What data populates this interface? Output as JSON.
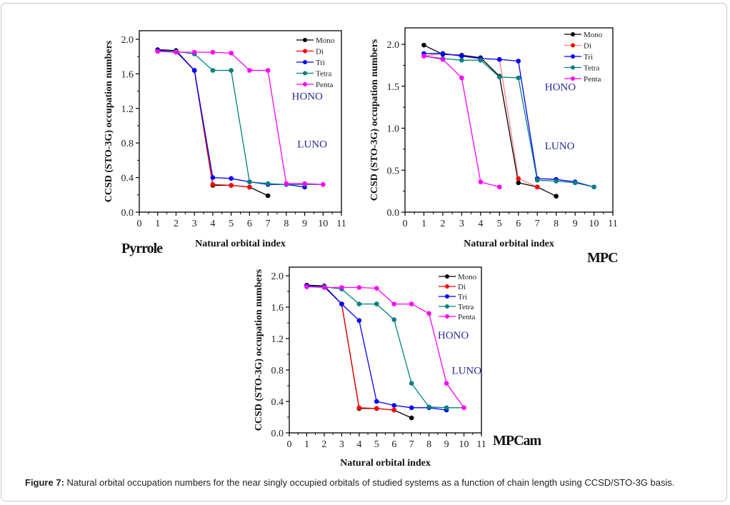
{
  "caption": {
    "label": "Figure 7:",
    "text": " Natural orbital occupation numbers for the near singly occupied orbitals of studied systems as a function of chain length using CCSD/STO-3G basis."
  },
  "chart_data": [
    {
      "type": "line",
      "system_label": "Pyrrole",
      "xlabel": "Natural orbital index",
      "ylabel": "CCSD (STO-3G) occupation numbers",
      "xlim": [
        0,
        11
      ],
      "ylim": [
        0,
        2.0
      ],
      "xticks": [
        "0",
        "1",
        "2",
        "3",
        "4",
        "5",
        "6",
        "7",
        "8",
        "9",
        "10",
        "11"
      ],
      "yticks": [
        "0.0",
        "0.4",
        "0.8",
        "1.2",
        "1.6",
        "2.0"
      ],
      "ytick_values": [
        0,
        0.4,
        0.8,
        1.2,
        1.6,
        2.0
      ],
      "legend": "top-right",
      "annotations": [
        {
          "text": "HONO",
          "x": 8.3,
          "y": 1.3
        },
        {
          "text": "LUNO",
          "x": 8.6,
          "y": 0.75
        }
      ],
      "series": [
        {
          "name": "Mono",
          "color": "#000000",
          "x": [
            1,
            2,
            3,
            4,
            5,
            6,
            7
          ],
          "y": [
            1.88,
            1.87,
            1.64,
            0.31,
            0.31,
            0.29,
            0.19
          ]
        },
        {
          "name": "Di",
          "color": "#ff0000",
          "x": [
            1,
            2,
            3,
            4,
            5,
            6
          ],
          "y": [
            1.87,
            1.86,
            1.64,
            0.32,
            0.31,
            0.29
          ]
        },
        {
          "name": "Tri",
          "color": "#0000ff",
          "x": [
            1,
            2,
            3,
            4,
            5,
            6,
            7,
            8,
            9
          ],
          "y": [
            1.87,
            1.86,
            1.64,
            0.4,
            0.39,
            0.35,
            0.32,
            0.32,
            0.29
          ]
        },
        {
          "name": "Tetra",
          "color": "#008080",
          "x": [
            1,
            2,
            3,
            4,
            5,
            6,
            7,
            8,
            9,
            10
          ],
          "y": [
            1.86,
            1.86,
            1.83,
            1.64,
            1.64,
            0.35,
            0.33,
            0.32,
            0.32,
            0.32
          ]
        },
        {
          "name": "Penta",
          "color": "#ff00ff",
          "x": [
            1,
            2,
            3,
            4,
            5,
            6,
            7,
            8,
            9,
            10
          ],
          "y": [
            1.86,
            1.85,
            1.85,
            1.85,
            1.84,
            1.64,
            1.64,
            0.33,
            0.33,
            0.32
          ]
        }
      ]
    },
    {
      "type": "line",
      "system_label": "MPC",
      "xlabel": "Natural orbital index",
      "ylabel": "CCSD (STO-3G) occupation numbers",
      "xlim": [
        0,
        11
      ],
      "ylim": [
        0,
        2.2
      ],
      "xticks": [
        "0",
        "1",
        "2",
        "3",
        "4",
        "5",
        "6",
        "7",
        "8",
        "9",
        "10",
        "11"
      ],
      "yticks": [
        "0.0",
        "0.5",
        "1.0",
        "1.5",
        "2.0"
      ],
      "ytick_values": [
        0,
        0.5,
        1.0,
        1.5,
        2.0
      ],
      "legend": "top-right",
      "annotations": [
        {
          "text": "HONO",
          "x": 7.4,
          "y": 1.45
        },
        {
          "text": "LUNO",
          "x": 7.4,
          "y": 0.75
        }
      ],
      "series": [
        {
          "name": "Mono",
          "color": "#000000",
          "x": [
            1,
            2,
            3,
            4,
            5,
            6,
            7,
            8
          ],
          "y": [
            1.99,
            1.88,
            1.87,
            1.84,
            1.62,
            0.35,
            0.3,
            0.19
          ]
        },
        {
          "name": "Di",
          "color": "#ff8080",
          "marker_color": "#ff0000",
          "x": [
            1,
            2,
            3,
            4,
            5,
            6,
            7
          ],
          "y": [
            1.86,
            1.89,
            1.86,
            1.83,
            1.82,
            0.4,
            0.3
          ]
        },
        {
          "name": "Tri",
          "color": "#0000ff",
          "x": [
            1,
            2,
            3,
            4,
            5,
            6,
            7,
            8,
            9,
            10
          ],
          "y": [
            1.89,
            1.89,
            1.86,
            1.83,
            1.82,
            1.8,
            0.4,
            0.39,
            0.36,
            0.3
          ]
        },
        {
          "name": "Tetra",
          "color": "#008080",
          "x": [
            1,
            2,
            3,
            4,
            5,
            6,
            7,
            8,
            9,
            10
          ],
          "y": [
            1.86,
            1.83,
            1.81,
            1.81,
            1.61,
            1.6,
            0.38,
            0.37,
            0.35,
            0.3
          ]
        },
        {
          "name": "Penta",
          "color": "#ff00ff",
          "x": [
            1,
            2,
            3,
            4,
            5
          ],
          "y": [
            1.86,
            1.82,
            1.6,
            0.36,
            0.3
          ]
        }
      ]
    },
    {
      "type": "line",
      "system_label": "MPCam",
      "xlabel": "Natural orbital index",
      "ylabel": "CCSD (STO-3G) occupation numbers",
      "xlim": [
        0,
        11
      ],
      "ylim": [
        0,
        2.0
      ],
      "xticks": [
        "0",
        "1",
        "2",
        "3",
        "4",
        "5",
        "6",
        "7",
        "8",
        "9",
        "10",
        "11"
      ],
      "yticks": [
        "0.0",
        "0.4",
        "0.8",
        "1.2",
        "1.6",
        "2.0"
      ],
      "ytick_values": [
        0,
        0.4,
        0.8,
        1.2,
        1.6,
        2.0
      ],
      "legend": "top-right",
      "annotations": [
        {
          "text": "HONO",
          "x": 8.5,
          "y": 1.2
        },
        {
          "text": "LUNO",
          "x": 9.3,
          "y": 0.75
        }
      ],
      "series": [
        {
          "name": "Mono",
          "color": "#000000",
          "x": [
            1,
            2,
            3,
            4,
            5,
            6,
            7
          ],
          "y": [
            1.88,
            1.87,
            1.64,
            0.31,
            0.31,
            0.29,
            0.19
          ]
        },
        {
          "name": "Di",
          "color": "#ff0000",
          "x": [
            1,
            2,
            3,
            4,
            5,
            6
          ],
          "y": [
            1.87,
            1.86,
            1.64,
            0.32,
            0.31,
            0.29
          ]
        },
        {
          "name": "Tri",
          "color": "#0000ff",
          "x": [
            1,
            2,
            3,
            4,
            5,
            6,
            7,
            8,
            9
          ],
          "y": [
            1.87,
            1.86,
            1.64,
            1.43,
            0.4,
            0.35,
            0.32,
            0.32,
            0.29
          ]
        },
        {
          "name": "Tetra",
          "color": "#008080",
          "x": [
            1,
            2,
            3,
            4,
            5,
            6,
            7,
            8,
            9,
            10
          ],
          "y": [
            1.86,
            1.86,
            1.83,
            1.64,
            1.64,
            1.44,
            0.63,
            0.33,
            0.32,
            0.32
          ]
        },
        {
          "name": "Penta",
          "color": "#ff00ff",
          "x": [
            1,
            2,
            3,
            4,
            5,
            6,
            7,
            8,
            9,
            10
          ],
          "y": [
            1.86,
            1.85,
            1.85,
            1.85,
            1.84,
            1.64,
            1.64,
            1.52,
            0.63,
            0.32
          ]
        }
      ]
    }
  ]
}
